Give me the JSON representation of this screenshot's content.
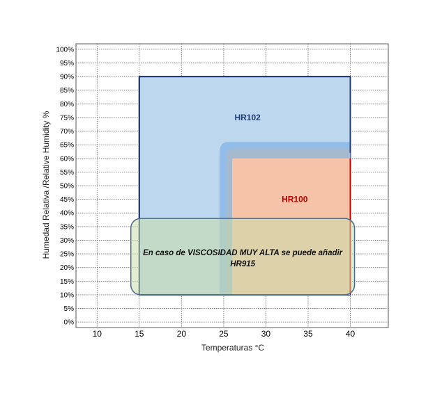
{
  "chart_data": {
    "type": "area",
    "title": "",
    "xlabel": "Temperaturas °C",
    "ylabel": "Humedad Relativa /Relative Humidity %",
    "xlim": [
      7.5,
      44.5
    ],
    "ylim": [
      -2,
      102
    ],
    "x_ticks": [
      10,
      15,
      20,
      25,
      30,
      35,
      40
    ],
    "y_ticks": [
      0,
      5,
      10,
      15,
      20,
      25,
      30,
      35,
      40,
      45,
      50,
      55,
      60,
      65,
      70,
      75,
      80,
      85,
      90,
      95,
      100
    ],
    "y_tick_labels": [
      "0%",
      "5%",
      "10%",
      "15%",
      "20%",
      "25%",
      "30%",
      "35%",
      "40%",
      "45%",
      "50%",
      "55%",
      "60%",
      "65%",
      "70%",
      "75%",
      "80%",
      "85%",
      "90%",
      "95%",
      "100%"
    ],
    "x_tick_labels": [
      "10",
      "15",
      "20",
      "25",
      "30",
      "35",
      "40"
    ],
    "grid": true,
    "regions": [
      {
        "name": "HR102",
        "x_range": [
          15,
          40
        ],
        "y_range": [
          10,
          90
        ],
        "color": "#bdd7ee",
        "border": "#1f3b73",
        "label_color": "#1f3b73"
      },
      {
        "name": "HR100",
        "x_range": [
          26,
          40
        ],
        "y_range": [
          10,
          60
        ],
        "color": "#f4c3a8",
        "border": "#c00000",
        "label_color": "#c00000"
      }
    ],
    "annotation": {
      "line1": "En caso de VISCOSIDAD MUY ALTA se puede añadir",
      "line2": "HR915",
      "x_range": [
        14,
        40.5
      ],
      "y_range": [
        10,
        38
      ]
    }
  }
}
